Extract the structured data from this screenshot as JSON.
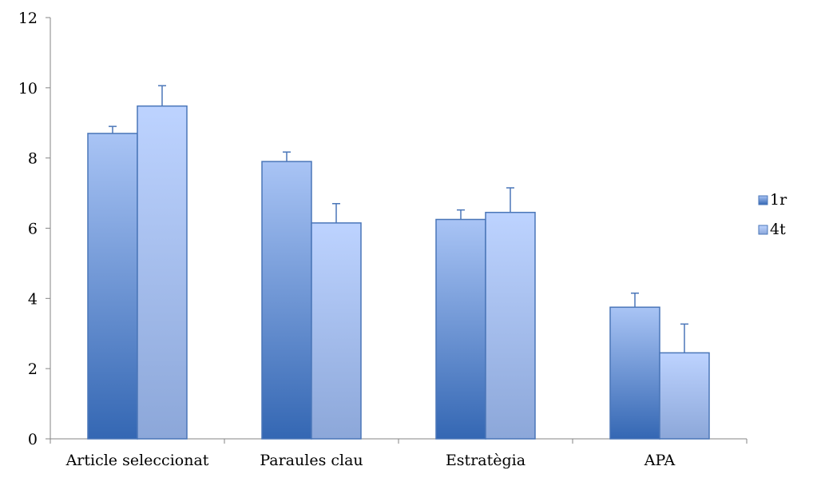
{
  "chart_data": {
    "type": "bar",
    "categories": [
      "Article seleccionat",
      "Paraules clau",
      "Estratègia",
      "APA"
    ],
    "series": [
      {
        "name": "1r",
        "values": [
          8.7,
          7.9,
          6.25,
          3.75
        ],
        "errors": [
          0.2,
          0.27,
          0.27,
          0.4
        ],
        "color_top": "#a9c4f5",
        "color_bottom": "#3467b3",
        "stroke": "#4a76b8"
      },
      {
        "name": "4t",
        "values": [
          9.48,
          6.15,
          6.45,
          2.45
        ],
        "errors": [
          0.58,
          0.55,
          0.7,
          0.82
        ],
        "color_top": "#bdd3ff",
        "color_bottom": "#8ca7d9",
        "stroke": "#4a76b8"
      }
    ],
    "yticks": [
      0,
      2,
      4,
      6,
      8,
      10,
      12
    ],
    "ylim": [
      0,
      12
    ],
    "xlabel": "",
    "ylabel": "",
    "title": "",
    "grid": false,
    "legend_position": "right",
    "error_bars": "positive"
  }
}
